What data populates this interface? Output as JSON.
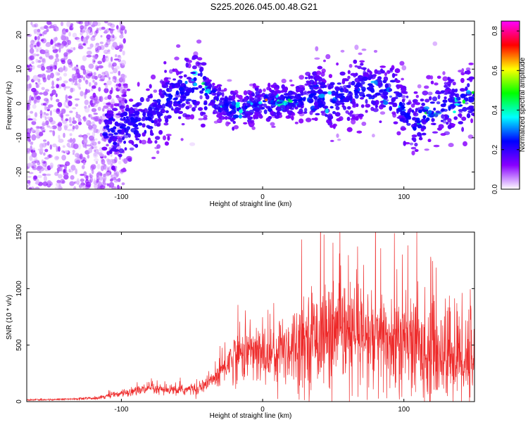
{
  "title": "S225.2026.045.00.48.G21",
  "chart_data": [
    {
      "type": "heatmap",
      "xlabel": "Height of straight line (km)",
      "ylabel": "Frequency (Hz)",
      "xlim": [
        -167,
        150
      ],
      "ylim": [
        -25,
        24
      ],
      "x_ticks": [
        -100,
        0,
        100
      ],
      "y_ticks": [
        -20,
        -10,
        0,
        10,
        20
      ],
      "colorbar": {
        "label": "Normalized spectral amplitude",
        "range": [
          0,
          0.85
        ],
        "ticks": [
          0.0,
          0.2,
          0.4,
          0.6,
          0.8
        ],
        "tick_labels": [
          "0.0",
          "0.2",
          "0.4",
          "0.6",
          "0.8"
        ],
        "colors": [
          "#ffffff",
          "#8800ff",
          "#0000ff",
          "#00ffff",
          "#00ff00",
          "#ffff00",
          "#ff0000",
          "#ff00ff"
        ]
      },
      "ridge_trace": {
        "x": [
          -167,
          -140,
          -120,
          -105,
          -95,
          -85,
          -75,
          -65,
          -55,
          -45,
          -40,
          -35,
          -30,
          -25,
          -20,
          -15,
          -10,
          -5,
          0,
          5,
          10,
          20,
          30,
          40,
          45,
          50,
          55,
          60,
          70,
          80,
          90,
          95,
          100,
          105,
          108,
          112,
          118,
          125,
          135,
          145,
          150
        ],
        "y": [
          -5,
          -6,
          -7,
          -8,
          -6,
          -5,
          -2,
          2,
          4,
          6,
          4,
          2,
          0,
          -1,
          -2,
          -2,
          -1,
          0,
          0,
          0,
          0,
          1,
          1,
          2,
          1,
          1,
          2,
          3,
          4,
          4,
          3,
          2,
          -2,
          -5,
          -6,
          -4,
          -3,
          -1,
          0,
          1,
          2
        ]
      }
    },
    {
      "type": "line",
      "xlabel": "Height of straight line (km)",
      "ylabel": "SNR (10 * v/v)",
      "xlim": [
        -167,
        150
      ],
      "ylim": [
        0,
        1500
      ],
      "x_ticks": [
        -100,
        0,
        100
      ],
      "y_ticks": [
        0,
        500,
        1000,
        1500
      ],
      "color": "#ee2a2a",
      "envelope": {
        "x": [
          -167,
          -140,
          -120,
          -110,
          -100,
          -90,
          -80,
          -70,
          -60,
          -50,
          -40,
          -30,
          -25,
          -20,
          -10,
          0,
          10,
          20,
          30,
          40,
          50,
          60,
          70,
          80,
          90,
          100,
          110,
          120,
          130,
          140,
          150
        ],
        "mean": [
          15,
          20,
          30,
          50,
          70,
          100,
          110,
          100,
          100,
          110,
          150,
          250,
          350,
          400,
          450,
          400,
          450,
          500,
          550,
          600,
          600,
          580,
          550,
          550,
          520,
          520,
          480,
          450,
          420,
          400,
          420
        ],
        "spread": [
          8,
          10,
          15,
          25,
          35,
          50,
          60,
          50,
          50,
          60,
          80,
          150,
          200,
          250,
          300,
          300,
          350,
          400,
          450,
          500,
          550,
          550,
          550,
          550,
          550,
          550,
          520,
          500,
          500,
          500,
          500
        ]
      }
    }
  ]
}
